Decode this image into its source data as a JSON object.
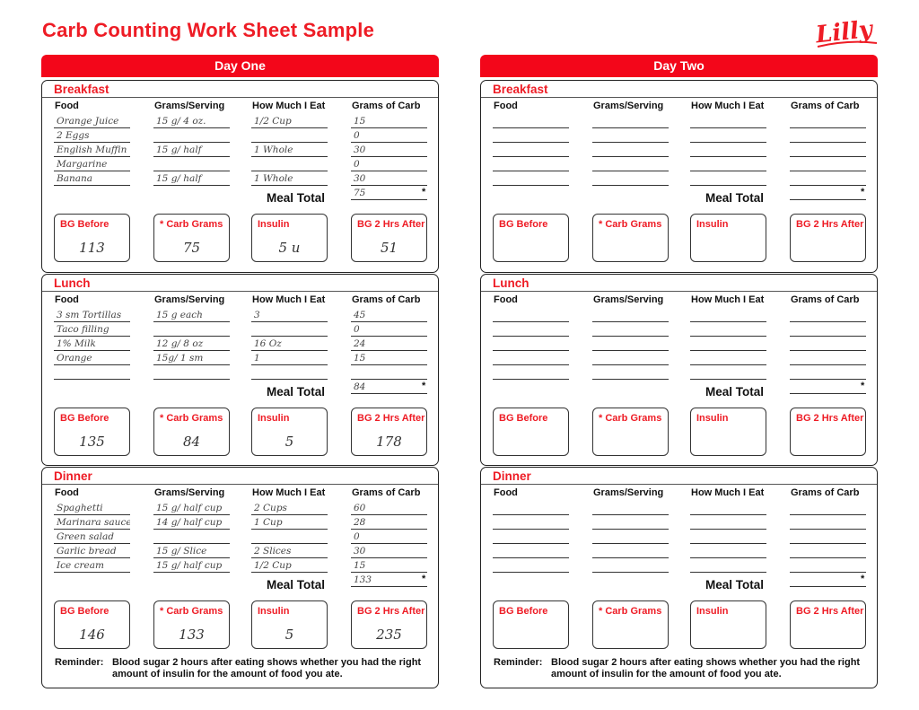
{
  "title": "Carb Counting Work Sheet Sample",
  "logo_text": "Lilly",
  "colors": {
    "accent": "#ee1c25",
    "header_bar": "#f3061a"
  },
  "column_headers": [
    "Food",
    "Grams/Serving",
    "How Much I Eat",
    "Grams of Carb"
  ],
  "meal_total_label": "Meal Total",
  "asterisk": "*",
  "box_labels": [
    "BG Before",
    "* Carb Grams",
    "Insulin",
    "BG 2 Hrs After"
  ],
  "reminder": {
    "label": "Reminder:",
    "text": "Blood sugar 2 hours after eating shows whether you had the right amount of insulin for the amount of food you ate."
  },
  "days": [
    {
      "title": "Day One",
      "meals": [
        {
          "name": "Breakfast",
          "rows": [
            {
              "food": "Orange Juice",
              "grams_serving": "15 g/ 4 oz.",
              "how_much": "1/2 Cup",
              "carb": "15"
            },
            {
              "food": "2 Eggs",
              "grams_serving": "",
              "how_much": "",
              "carb": "0"
            },
            {
              "food": "English Muffin",
              "grams_serving": "15 g/ half",
              "how_much": "1 Whole",
              "carb": "30"
            },
            {
              "food": "Margarine",
              "grams_serving": "",
              "how_much": "",
              "carb": "0"
            },
            {
              "food": "Banana",
              "grams_serving": "15 g/ half",
              "how_much": "1 Whole",
              "carb": "30"
            }
          ],
          "meal_total": "75",
          "boxes": [
            "113",
            "75",
            "5 u",
            "51"
          ]
        },
        {
          "name": "Lunch",
          "rows": [
            {
              "food": "3 sm Tortillas",
              "grams_serving": "15 g each",
              "how_much": "3",
              "carb": "45"
            },
            {
              "food": "Taco filling",
              "grams_serving": "",
              "how_much": "",
              "carb": "0"
            },
            {
              "food": "1% Milk",
              "grams_serving": "12 g/ 8 oz",
              "how_much": "16 Oz",
              "carb": "24"
            },
            {
              "food": "Orange",
              "grams_serving": "15g/ 1 sm",
              "how_much": "1",
              "carb": "15"
            },
            {
              "food": "",
              "grams_serving": "",
              "how_much": "",
              "carb": ""
            }
          ],
          "meal_total": "84",
          "boxes": [
            "135",
            "84",
            "5",
            "178"
          ]
        },
        {
          "name": "Dinner",
          "rows": [
            {
              "food": "Spaghetti",
              "grams_serving": "15 g/ half cup",
              "how_much": "2 Cups",
              "carb": "60"
            },
            {
              "food": "Marinara sauce",
              "grams_serving": "14 g/ half cup",
              "how_much": "1 Cup",
              "carb": "28"
            },
            {
              "food": "Green salad",
              "grams_serving": "",
              "how_much": "",
              "carb": "0"
            },
            {
              "food": "Garlic bread",
              "grams_serving": "15 g/ Slice",
              "how_much": "2 Slices",
              "carb": "30"
            },
            {
              "food": "Ice cream",
              "grams_serving": "15 g/ half cup",
              "how_much": "1/2 Cup",
              "carb": "15"
            }
          ],
          "meal_total": "133",
          "boxes": [
            "146",
            "133",
            "5",
            "235"
          ]
        }
      ]
    },
    {
      "title": "Day Two",
      "meals": [
        {
          "name": "Breakfast",
          "rows": [
            {
              "food": "",
              "grams_serving": "",
              "how_much": "",
              "carb": ""
            },
            {
              "food": "",
              "grams_serving": "",
              "how_much": "",
              "carb": ""
            },
            {
              "food": "",
              "grams_serving": "",
              "how_much": "",
              "carb": ""
            },
            {
              "food": "",
              "grams_serving": "",
              "how_much": "",
              "carb": ""
            },
            {
              "food": "",
              "grams_serving": "",
              "how_much": "",
              "carb": ""
            }
          ],
          "meal_total": "",
          "boxes": [
            "",
            "",
            "",
            ""
          ]
        },
        {
          "name": "Lunch",
          "rows": [
            {
              "food": "",
              "grams_serving": "",
              "how_much": "",
              "carb": ""
            },
            {
              "food": "",
              "grams_serving": "",
              "how_much": "",
              "carb": ""
            },
            {
              "food": "",
              "grams_serving": "",
              "how_much": "",
              "carb": ""
            },
            {
              "food": "",
              "grams_serving": "",
              "how_much": "",
              "carb": ""
            },
            {
              "food": "",
              "grams_serving": "",
              "how_much": "",
              "carb": ""
            }
          ],
          "meal_total": "",
          "boxes": [
            "",
            "",
            "",
            ""
          ]
        },
        {
          "name": "Dinner",
          "rows": [
            {
              "food": "",
              "grams_serving": "",
              "how_much": "",
              "carb": ""
            },
            {
              "food": "",
              "grams_serving": "",
              "how_much": "",
              "carb": ""
            },
            {
              "food": "",
              "grams_serving": "",
              "how_much": "",
              "carb": ""
            },
            {
              "food": "",
              "grams_serving": "",
              "how_much": "",
              "carb": ""
            },
            {
              "food": "",
              "grams_serving": "",
              "how_much": "",
              "carb": ""
            }
          ],
          "meal_total": "",
          "boxes": [
            "",
            "",
            "",
            ""
          ]
        }
      ]
    }
  ]
}
